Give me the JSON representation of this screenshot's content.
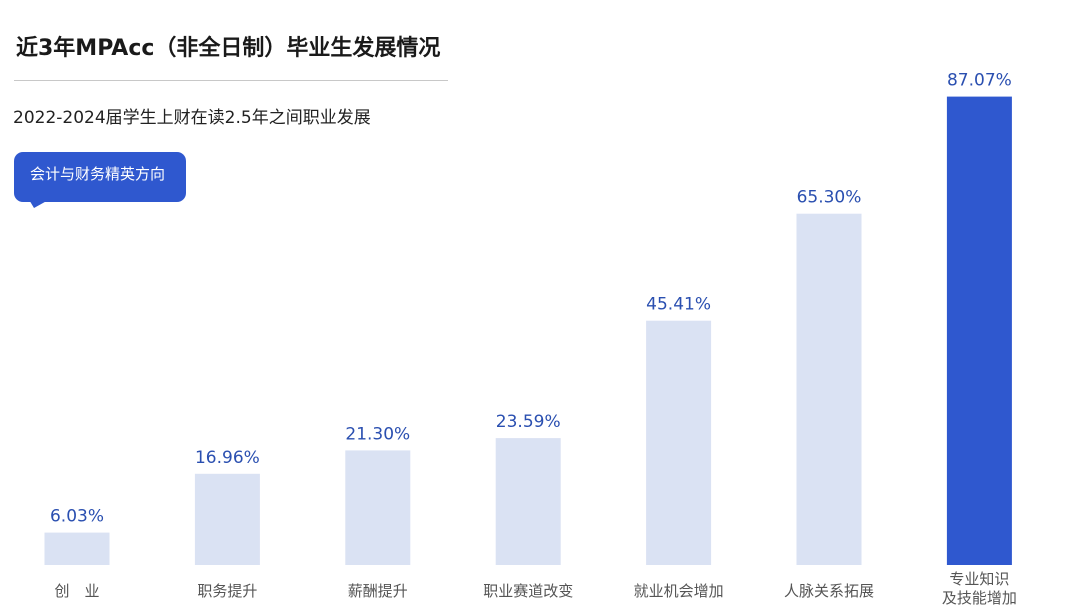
{
  "header": {
    "title": "近3年MPAcc（非全日制）毕业生发展情况",
    "subtitle": "2022-2024届学生上财在读2.5年之间职业发展",
    "badge": "会计与财务精英方向"
  },
  "chart_data": {
    "type": "bar",
    "title": "近3年MPAcc（非全日制）毕业生发展情况",
    "subtitle": "2022-2024届学生上财在读2.5年之间职业发展",
    "categories": [
      [
        "创",
        "业"
      ],
      [
        "职务提升"
      ],
      [
        "薪酬提升"
      ],
      [
        "职业赛道改变"
      ],
      [
        "就业机会增加"
      ],
      [
        "人脉关系拓展"
      ],
      [
        "专业知识",
        "及技能增加"
      ]
    ],
    "values": [
      6.03,
      16.96,
      21.3,
      23.59,
      45.41,
      65.3,
      87.07
    ],
    "value_labels": [
      "6.03%",
      "16.96%",
      "21.30%",
      "23.59%",
      "45.41%",
      "65.30%",
      "87.07%"
    ],
    "unit": "%",
    "ylim": [
      0,
      100
    ],
    "grid": false,
    "legend": "none",
    "highlight_index": 6,
    "colors": {
      "bar": "#dae2f3",
      "highlight": "#2f58cf",
      "value_label": "#2a4fb0",
      "category_label": "#555555"
    }
  }
}
